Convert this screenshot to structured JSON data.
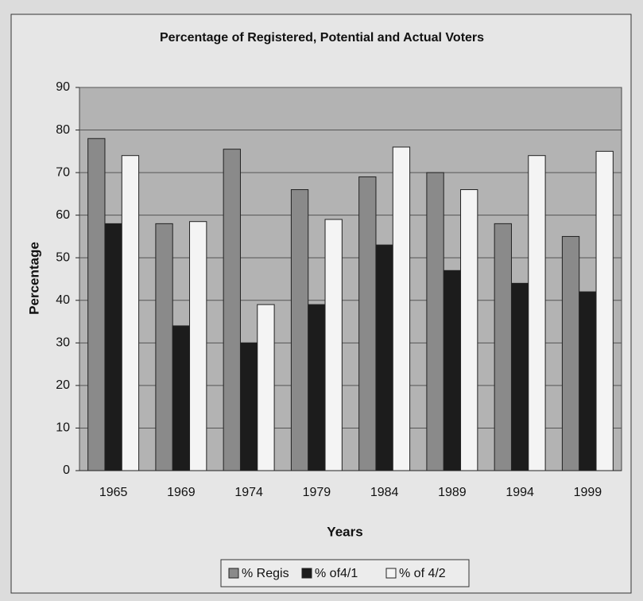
{
  "chart_data": {
    "type": "bar",
    "title": "Percentage of Registered, Potential and Actual Voters",
    "x_label": "Years",
    "y_label": "Percentage",
    "categories": [
      "1965",
      "1969",
      "1974",
      "1979",
      "1984",
      "1989",
      "1994",
      "1999"
    ],
    "series": [
      {
        "name": "% Regis",
        "color": "#8a8a8a",
        "values": [
          78,
          58,
          75.5,
          66,
          69,
          70,
          58,
          55
        ]
      },
      {
        "name": "% of4/1",
        "color": "#1c1c1c",
        "values": [
          58,
          34,
          30,
          39,
          53,
          47,
          44,
          42
        ]
      },
      {
        "name": "% of 4/2",
        "color": "#f4f4f4",
        "values": [
          74,
          58.5,
          39,
          59,
          76,
          66,
          74,
          75
        ]
      }
    ],
    "ylim": [
      0,
      90
    ],
    "yticks": [
      0,
      10,
      20,
      30,
      40,
      50,
      60,
      70,
      80,
      90
    ],
    "grid": true
  }
}
